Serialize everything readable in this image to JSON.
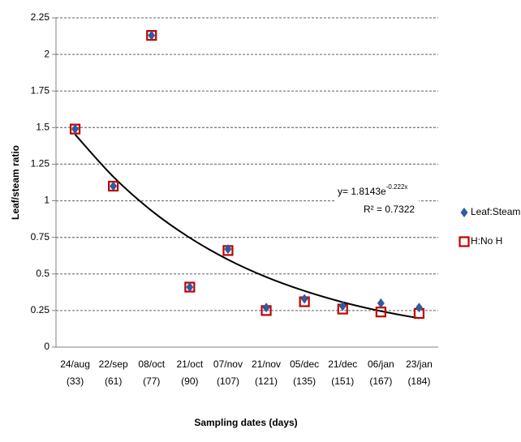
{
  "chart_data": {
    "type": "scatter",
    "y_label": "Leaf/steam ratio",
    "x_label": "Sampling dates (days)",
    "categories": [
      [
        "24/aug",
        "(33)"
      ],
      [
        "22/sep",
        "(61)"
      ],
      [
        "08/oct",
        "(77)"
      ],
      [
        "21/oct",
        "(90)"
      ],
      [
        "07/nov",
        "(107)"
      ],
      [
        "21/nov",
        "(121)"
      ],
      [
        "05/dec",
        "(135)"
      ],
      [
        "21/dec",
        "(151)"
      ],
      [
        "06/jan",
        "(167)"
      ],
      [
        "23/jan",
        "(184)"
      ]
    ],
    "series": [
      {
        "name": "Leaf:Steam",
        "color": "#2e5c9e",
        "marker": "diamond",
        "values": [
          1.49,
          1.1,
          2.13,
          0.41,
          0.67,
          0.27,
          0.33,
          0.28,
          0.3,
          0.27
        ]
      },
      {
        "name": "H:No H",
        "color": "#c00000",
        "marker": "square",
        "values": [
          1.49,
          1.1,
          2.13,
          0.41,
          0.66,
          0.25,
          0.31,
          0.26,
          0.24,
          0.23
        ]
      }
    ],
    "trendline": {
      "equation": "y= 1.8143e",
      "exponent": "-0.222x",
      "r_squared": "R² = 0.7322",
      "color": "#000000",
      "values": [
        1.453,
        1.164,
        0.932,
        0.747,
        0.598,
        0.479,
        0.384,
        0.307,
        0.246,
        0.197
      ]
    },
    "ylim": [
      0,
      2.25
    ],
    "yticks": [
      0,
      0.25,
      0.5,
      0.75,
      1,
      1.25,
      1.5,
      1.75,
      2,
      2.25
    ],
    "grid": true
  }
}
